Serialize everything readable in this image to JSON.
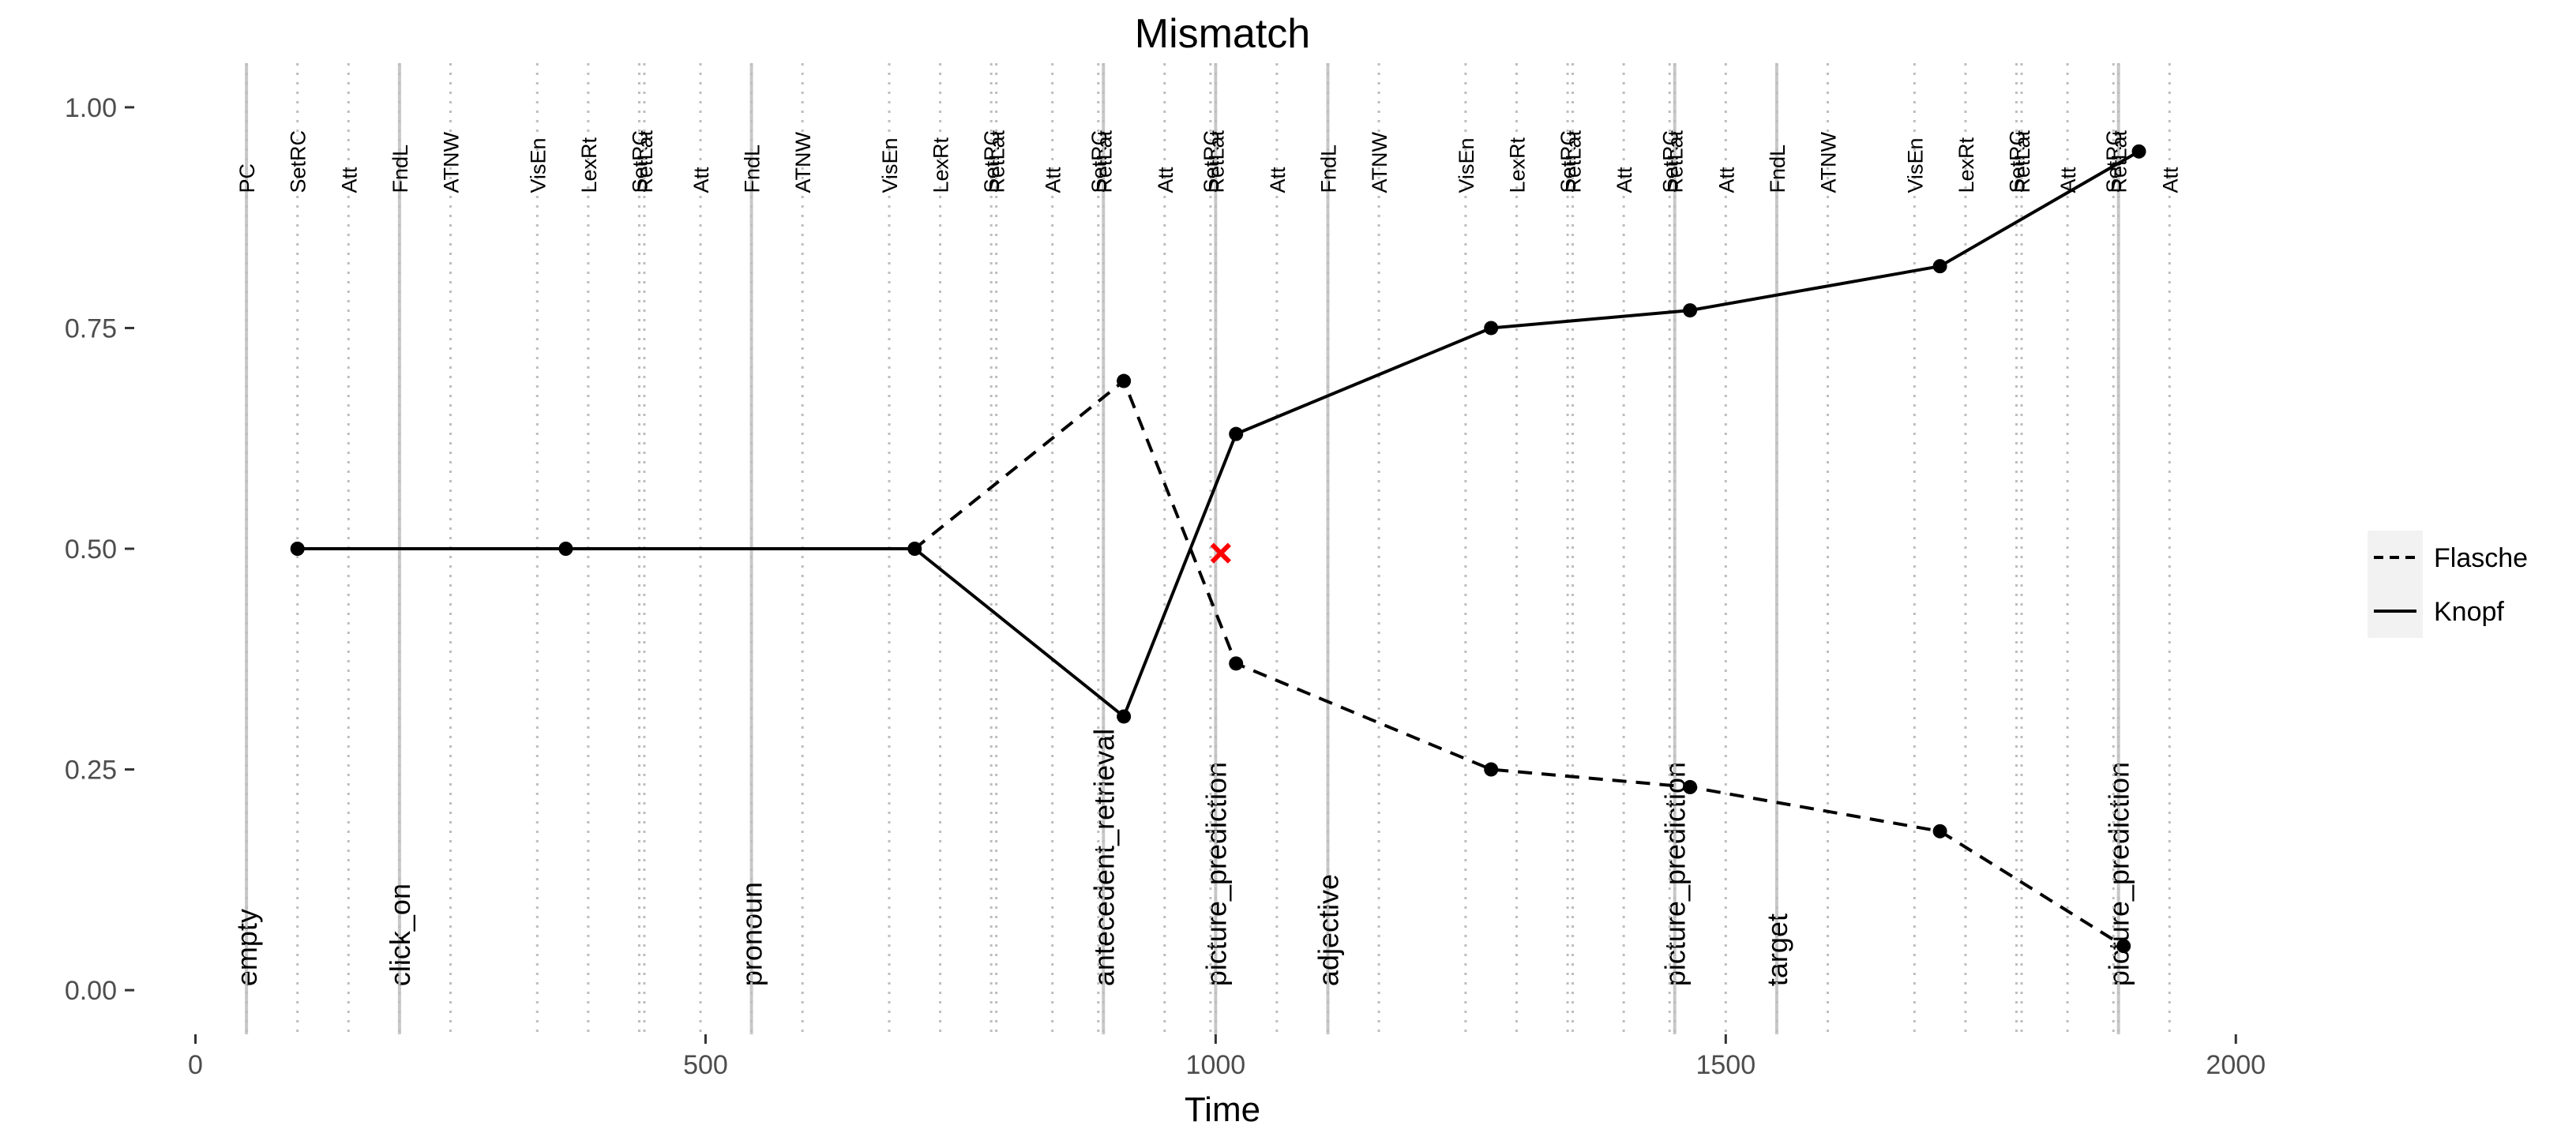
{
  "chart_data": {
    "type": "line",
    "title": "Mismatch",
    "xlabel": "Time",
    "ylabel": "",
    "xlim": [
      -60,
      2030
    ],
    "ylim": [
      -0.05,
      1.05
    ],
    "x_ticks": [
      0,
      500,
      1000,
      1500,
      2000
    ],
    "x_tick_labels": [
      "0",
      "500",
      "1000",
      "1500",
      "2000"
    ],
    "y_ticks": [
      0,
      0.25,
      0.5,
      0.75,
      1
    ],
    "y_tick_labels": [
      "0.00",
      "0.25",
      "0.50",
      "0.75",
      "1.00"
    ],
    "grid": false,
    "legend_position": "right",
    "series": [
      {
        "name": "Flasche",
        "line_style": "dashed",
        "x": [
          100,
          363,
          705,
          910,
          1020,
          1270,
          1465,
          1710,
          1890
        ],
        "y": [
          0.5,
          0.5,
          0.5,
          0.69,
          0.37,
          0.25,
          0.23,
          0.18,
          0.05
        ]
      },
      {
        "name": "Knopf",
        "line_style": "solid",
        "x": [
          100,
          363,
          705,
          910,
          1020,
          1270,
          1465,
          1710,
          1905
        ],
        "y": [
          0.5,
          0.5,
          0.5,
          0.31,
          0.63,
          0.75,
          0.77,
          0.82,
          0.95
        ]
      }
    ],
    "dots": [
      {
        "x": 100,
        "y": 0.5
      },
      {
        "x": 363,
        "y": 0.5
      },
      {
        "x": 705,
        "y": 0.5
      },
      {
        "x": 910,
        "y": 0.69
      },
      {
        "x": 910,
        "y": 0.31
      },
      {
        "x": 1020,
        "y": 0.63
      },
      {
        "x": 1020,
        "y": 0.37
      },
      {
        "x": 1270,
        "y": 0.75
      },
      {
        "x": 1270,
        "y": 0.25
      },
      {
        "x": 1465,
        "y": 0.77
      },
      {
        "x": 1465,
        "y": 0.23
      },
      {
        "x": 1710,
        "y": 0.82
      },
      {
        "x": 1710,
        "y": 0.18
      },
      {
        "x": 1890,
        "y": 0.05
      },
      {
        "x": 1905,
        "y": 0.95
      }
    ],
    "marker": {
      "x": 1005,
      "y": 0.495,
      "symbol": "x",
      "color": "#ff0000"
    },
    "stage_lines": [
      {
        "x": 50,
        "label": "empty"
      },
      {
        "x": 200,
        "label": "click_on"
      },
      {
        "x": 545,
        "label": "pronoun"
      },
      {
        "x": 890,
        "label": "antecedent_retrieval"
      },
      {
        "x": 1000,
        "label": "picture_prediction"
      },
      {
        "x": 1110,
        "label": "adjective"
      },
      {
        "x": 1450,
        "label": "picture_prediction"
      },
      {
        "x": 1550,
        "label": "target"
      },
      {
        "x": 1885,
        "label": "picture_prediction"
      }
    ],
    "event_lines": [
      {
        "x": 50,
        "label": "PC"
      },
      {
        "x": 100,
        "label": "SetRC"
      },
      {
        "x": 150,
        "label": "Att"
      },
      {
        "x": 200,
        "label": "FndL"
      },
      {
        "x": 250,
        "label": "ATNW"
      },
      {
        "x": 335,
        "label": "VisEn"
      },
      {
        "x": 385,
        "label": "LexRt"
      },
      {
        "x": 435,
        "label": "SetRC"
      },
      {
        "x": 440,
        "label": "RetLat"
      },
      {
        "x": 495,
        "label": "Att"
      },
      {
        "x": 545,
        "label": "FndL"
      },
      {
        "x": 595,
        "label": "ATNW"
      },
      {
        "x": 680,
        "label": "VisEn"
      },
      {
        "x": 730,
        "label": "LexRt"
      },
      {
        "x": 780,
        "label": "SetRC"
      },
      {
        "x": 785,
        "label": "RetLat"
      },
      {
        "x": 840,
        "label": "Att"
      },
      {
        "x": 885,
        "label": "SetRC"
      },
      {
        "x": 890,
        "label": "RetLat"
      },
      {
        "x": 950,
        "label": "Att"
      },
      {
        "x": 995,
        "label": "SetRC"
      },
      {
        "x": 1000,
        "label": "RetLat"
      },
      {
        "x": 1060,
        "label": "Att"
      },
      {
        "x": 1110,
        "label": "FndL"
      },
      {
        "x": 1160,
        "label": "ATNW"
      },
      {
        "x": 1245,
        "label": "VisEn"
      },
      {
        "x": 1295,
        "label": "LexRt"
      },
      {
        "x": 1345,
        "label": "SetRC"
      },
      {
        "x": 1350,
        "label": "RetLat"
      },
      {
        "x": 1400,
        "label": "Att"
      },
      {
        "x": 1445,
        "label": "SetRC"
      },
      {
        "x": 1450,
        "label": "RetLat"
      },
      {
        "x": 1500,
        "label": "Att"
      },
      {
        "x": 1550,
        "label": "FndL"
      },
      {
        "x": 1600,
        "label": "ATNW"
      },
      {
        "x": 1685,
        "label": "VisEn"
      },
      {
        "x": 1735,
        "label": "LexRt"
      },
      {
        "x": 1785,
        "label": "SetRC"
      },
      {
        "x": 1790,
        "label": "RetLat"
      },
      {
        "x": 1835,
        "label": "Att"
      },
      {
        "x": 1880,
        "label": "SetRC"
      },
      {
        "x": 1885,
        "label": "RetLat"
      },
      {
        "x": 1935,
        "label": "Att"
      }
    ]
  }
}
